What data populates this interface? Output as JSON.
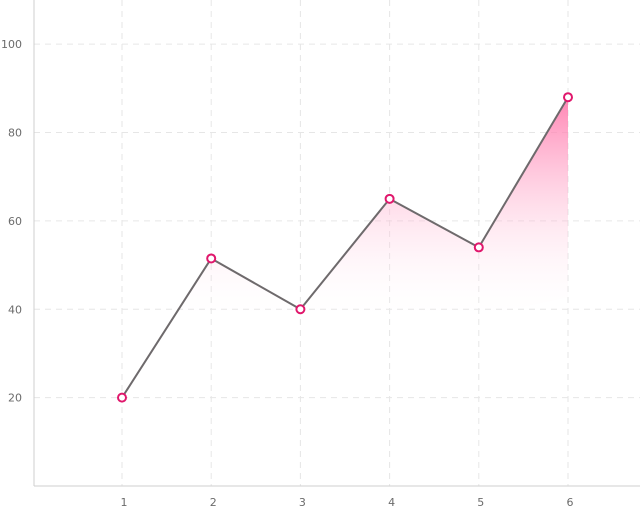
{
  "chart_data": {
    "type": "area",
    "title": "",
    "xlabel": "",
    "ylabel": "",
    "x": [
      1,
      2,
      3,
      4,
      5,
      6
    ],
    "series": [
      {
        "values": [
          20,
          51.5,
          40,
          65,
          54,
          88
        ]
      }
    ],
    "xticks": [
      "1",
      "2",
      "3",
      "4",
      "5",
      "6"
    ],
    "yticks": [
      "20",
      "40",
      "60",
      "80",
      "100"
    ],
    "xlim": [
      0,
      7
    ],
    "ylim": [
      0,
      110
    ],
    "grid": true,
    "colors": {
      "line": "#6e6a6c",
      "marker": "#e0176c",
      "fill_top": "#ff6fa6",
      "grid": "#e6e6e6",
      "axis": "#cfcfcf",
      "tick_text": "#6b6b6b"
    }
  }
}
